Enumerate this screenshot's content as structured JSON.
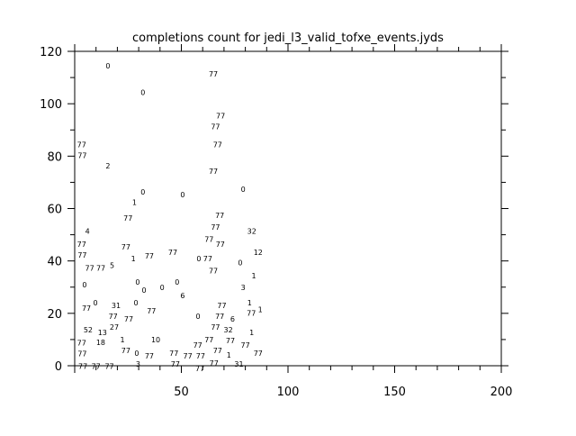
{
  "chart_data": {
    "type": "scatter",
    "title": "completions count for jedi_l3_valid_tofxe_events.jyds",
    "xlabel": "",
    "ylabel": "",
    "xlim": [
      0,
      200
    ],
    "ylim": [
      0,
      120
    ],
    "xticks": [
      50,
      100,
      150,
      200
    ],
    "yticks": [
      0,
      20,
      40,
      60,
      80,
      100,
      120
    ],
    "grid": false,
    "marker": "text-label",
    "points": [
      [
        15.6,
        114.2,
        "0"
      ],
      [
        65,
        111,
        "77"
      ],
      [
        32,
        104,
        "0"
      ],
      [
        68.4,
        95,
        "77"
      ],
      [
        66,
        91,
        "77"
      ],
      [
        2,
        84,
        "77"
      ],
      [
        2.3,
        83,
        "77"
      ],
      [
        67,
        84,
        "77"
      ],
      [
        15.6,
        76,
        "2"
      ],
      [
        65,
        74,
        "77"
      ],
      [
        32,
        66,
        "0"
      ],
      [
        50.6,
        65,
        "0"
      ],
      [
        79,
        67,
        "0"
      ],
      [
        28,
        62,
        "1"
      ],
      [
        68,
        57,
        "77"
      ],
      [
        25,
        56,
        "77"
      ],
      [
        66,
        52.6,
        "77"
      ],
      [
        6,
        51,
        "4"
      ],
      [
        83,
        51,
        "32"
      ],
      [
        63,
        49,
        "77"
      ],
      [
        2,
        46,
        "77"
      ],
      [
        2.3,
        45,
        "77"
      ],
      [
        67,
        46,
        "77"
      ],
      [
        24,
        45,
        "77"
      ],
      [
        86,
        43,
        "12"
      ],
      [
        46,
        43,
        "77"
      ],
      [
        27.5,
        41.6,
        "1"
      ],
      [
        35,
        41.6,
        "77"
      ],
      [
        58.2,
        40.6,
        "0"
      ],
      [
        62.4,
        40.6,
        "77"
      ],
      [
        77.6,
        39,
        "0"
      ],
      [
        7,
        37,
        "77"
      ],
      [
        11,
        37,
        "77"
      ],
      [
        15,
        38,
        "5"
      ],
      [
        65,
        36,
        "77"
      ],
      [
        84,
        34,
        "1"
      ],
      [
        4.6,
        30.6,
        "0"
      ],
      [
        29.5,
        31.6,
        "0"
      ],
      [
        32.5,
        28.5,
        "0"
      ],
      [
        41,
        29.6,
        "0"
      ],
      [
        48,
        31.6,
        "0"
      ],
      [
        79,
        29.6,
        "3"
      ],
      [
        50.6,
        26.5,
        "6"
      ],
      [
        9.7,
        23.7,
        "0"
      ],
      [
        5.5,
        21.7,
        "77"
      ],
      [
        19.4,
        22.7,
        "31"
      ],
      [
        28.7,
        23.7,
        "0"
      ],
      [
        69,
        22.7,
        "77"
      ],
      [
        82,
        23.7,
        "1"
      ],
      [
        87,
        21.2,
        "1"
      ],
      [
        86.6,
        20.8,
        "77"
      ],
      [
        18,
        19.6,
        "77"
      ],
      [
        36,
        20.6,
        "77"
      ],
      [
        68,
        19.6,
        "77"
      ],
      [
        57.8,
        18.6,
        "0"
      ],
      [
        25.3,
        17.5,
        "77"
      ],
      [
        74,
        17.5,
        "6"
      ],
      [
        6.3,
        13.4,
        "52"
      ],
      [
        13,
        12.4,
        "13"
      ],
      [
        17.3,
        14.4,
        "27"
      ],
      [
        66,
        14.4,
        "77"
      ],
      [
        72,
        14.4,
        "32"
      ],
      [
        73,
        12.4,
        "77"
      ],
      [
        83,
        12.4,
        "1"
      ],
      [
        22.4,
        10.7,
        "1"
      ],
      [
        38,
        9.6,
        "10"
      ],
      [
        63,
        10.7,
        "77"
      ],
      [
        2,
        8.4,
        "77"
      ],
      [
        2.3,
        7.4,
        "77"
      ],
      [
        12.2,
        8.6,
        "18"
      ],
      [
        24,
        6.5,
        "77"
      ],
      [
        67,
        7.6,
        "77"
      ],
      [
        80,
        7.6,
        "77"
      ],
      [
        27.8,
        4.5,
        "0"
      ],
      [
        35,
        3.4,
        "77"
      ],
      [
        46.5,
        4.4,
        "77"
      ],
      [
        47.2,
        3.4,
        "77"
      ],
      [
        53,
        3.4,
        "77"
      ],
      [
        56.5,
        3.4,
        "77"
      ],
      [
        58.7,
        2.8,
        "77"
      ],
      [
        61.5,
        2.8,
        "77"
      ],
      [
        64,
        4.5,
        "77"
      ],
      [
        71,
        3.8,
        "1"
      ],
      [
        86,
        4.5,
        "77"
      ],
      [
        31,
        1.4,
        "3"
      ],
      [
        77,
        0.3,
        "31"
      ],
      [
        1.3,
        -0.5,
        "77"
      ],
      [
        10,
        -0.5,
        "77"
      ],
      [
        15,
        -0.5,
        "77"
      ]
    ]
  }
}
